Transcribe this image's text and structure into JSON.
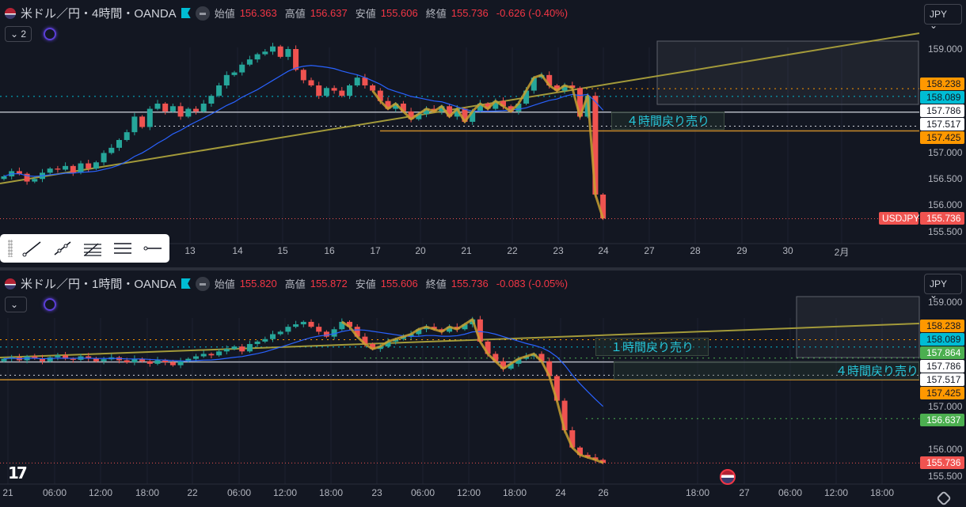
{
  "top": {
    "title": "米ドル／円・4時間・OANDA",
    "open_label": "始値",
    "open": "156.363",
    "high_label": "高値",
    "high": "156.637",
    "low_label": "安値",
    "low": "155.606",
    "close_label": "終値",
    "close": "155.736",
    "change": "-0.626 (-0.40%)",
    "control": "2",
    "currency": "JPY",
    "ticks": [
      "159.000",
      "157.000",
      "156.500",
      "156.000",
      "155.500"
    ],
    "tags": [
      {
        "v": "158.238",
        "bg": "#ff9800",
        "fg": "#131722"
      },
      {
        "v": "158.089",
        "bg": "#00bcd4",
        "fg": "#131722"
      },
      {
        "v": "157.786",
        "bg": "#ffffff",
        "fg": "#131722"
      },
      {
        "v": "157.517",
        "bg": "#ffffff",
        "fg": "#131722"
      },
      {
        "v": "157.425",
        "bg": "#ff9800",
        "fg": "#131722"
      },
      {
        "v": "155.736",
        "bg": "#f05350",
        "fg": "#ffffff"
      }
    ],
    "symbol_tag": "USDJPY",
    "zone_label": "４時間戻り売り",
    "xlabels": [
      "13",
      "14",
      "15",
      "16",
      "17",
      "20",
      "21",
      "22",
      "23",
      "24",
      "27",
      "28",
      "29",
      "30",
      "2月"
    ]
  },
  "bottom": {
    "title": "米ドル／円・1時間・OANDA",
    "open_label": "始値",
    "open": "155.820",
    "high_label": "高値",
    "high": "155.872",
    "low_label": "安値",
    "low": "155.606",
    "close_label": "終値",
    "close": "155.736",
    "change": "-0.083 (-0.05%)",
    "currency": "JPY",
    "ticks": [
      "159.000",
      "157.000",
      "156.000",
      "155.500"
    ],
    "tags": [
      {
        "v": "158.238",
        "bg": "#ff9800",
        "fg": "#131722"
      },
      {
        "v": "158.089",
        "bg": "#00bcd4",
        "fg": "#131722"
      },
      {
        "v": "157.864",
        "bg": "#4caf50",
        "fg": "#ffffff"
      },
      {
        "v": "157.786",
        "bg": "#ffffff",
        "fg": "#131722"
      },
      {
        "v": "157.517",
        "bg": "#ffffff",
        "fg": "#131722"
      },
      {
        "v": "157.425",
        "bg": "#ff9800",
        "fg": "#131722"
      },
      {
        "v": "156.637",
        "bg": "#4caf50",
        "fg": "#ffffff"
      },
      {
        "v": "155.736",
        "bg": "#f05350",
        "fg": "#ffffff"
      }
    ],
    "zone_label_1h": "１時間戻り売り",
    "zone_label_4h": "４時間戻り売り",
    "xlabels": [
      "21",
      "06:00",
      "12:00",
      "18:00",
      "22",
      "06:00",
      "12:00",
      "18:00",
      "23",
      "06:00",
      "12:00",
      "18:00",
      "24",
      "26",
      "18:00",
      "27",
      "06:00",
      "12:00",
      "18:00"
    ]
  },
  "colors": {
    "up": "#26a69a",
    "down": "#ef5350",
    "ma": "#2962ff",
    "trend": "#a39a3a",
    "pattern": "#c8a030"
  },
  "chart_data": [
    {
      "type": "candlestick",
      "timeframe": "4h",
      "yticks": [
        159.0,
        157.0,
        156.5,
        156.0,
        155.5
      ],
      "closes": [
        156.55,
        156.65,
        156.6,
        156.45,
        156.5,
        156.62,
        156.7,
        156.68,
        156.75,
        156.62,
        156.8,
        156.7,
        156.82,
        157.0,
        157.1,
        157.25,
        157.4,
        157.7,
        157.5,
        157.85,
        157.95,
        157.8,
        157.9,
        157.7,
        157.85,
        157.8,
        157.95,
        158.1,
        158.3,
        158.5,
        158.55,
        158.7,
        158.8,
        158.9,
        158.95,
        159.05,
        158.85,
        159.0,
        158.6,
        158.4,
        158.3,
        158.1,
        158.25,
        158.2,
        158.1,
        158.3,
        158.45,
        158.3,
        158.2,
        158.0,
        157.85,
        157.95,
        157.8,
        157.65,
        157.75,
        157.85,
        157.8,
        157.9,
        157.7,
        157.85,
        157.6,
        157.8,
        157.95,
        157.85,
        158.0,
        157.9,
        157.8,
        157.95,
        158.2,
        158.45,
        158.5,
        158.3,
        158.2,
        158.3,
        158.25,
        157.7,
        158.1,
        156.2,
        155.74
      ],
      "hlines": [
        157.786,
        157.517,
        157.425,
        158.238,
        158.089
      ],
      "last": 155.736
    },
    {
      "type": "candlestick",
      "timeframe": "1h",
      "yticks": [
        159.0,
        157.0,
        156.0,
        155.5
      ],
      "closes": [
        157.85,
        157.88,
        157.82,
        157.9,
        157.86,
        157.8,
        157.88,
        157.92,
        157.85,
        157.83,
        157.9,
        157.86,
        157.8,
        157.84,
        157.88,
        157.82,
        157.78,
        157.85,
        157.8,
        157.75,
        157.82,
        157.78,
        157.72,
        157.8,
        157.85,
        157.9,
        157.95,
        157.92,
        158.0,
        158.05,
        158.1,
        158.0,
        158.15,
        158.2,
        158.25,
        158.35,
        158.4,
        158.5,
        158.55,
        158.6,
        158.5,
        158.4,
        158.3,
        158.45,
        158.6,
        158.5,
        158.3,
        158.15,
        158.05,
        158.1,
        158.2,
        158.25,
        158.3,
        158.35,
        158.45,
        158.5,
        158.45,
        158.4,
        158.5,
        158.45,
        158.55,
        158.65,
        158.2,
        157.95,
        157.8,
        157.65,
        157.75,
        157.85,
        157.9,
        157.95,
        157.8,
        157.5,
        157.0,
        156.4,
        156.05,
        155.9,
        155.85,
        155.8,
        155.74
      ],
      "hlines": [
        157.786,
        157.517,
        157.425,
        158.238,
        158.089,
        157.864,
        156.637
      ],
      "last": 155.736
    }
  ]
}
